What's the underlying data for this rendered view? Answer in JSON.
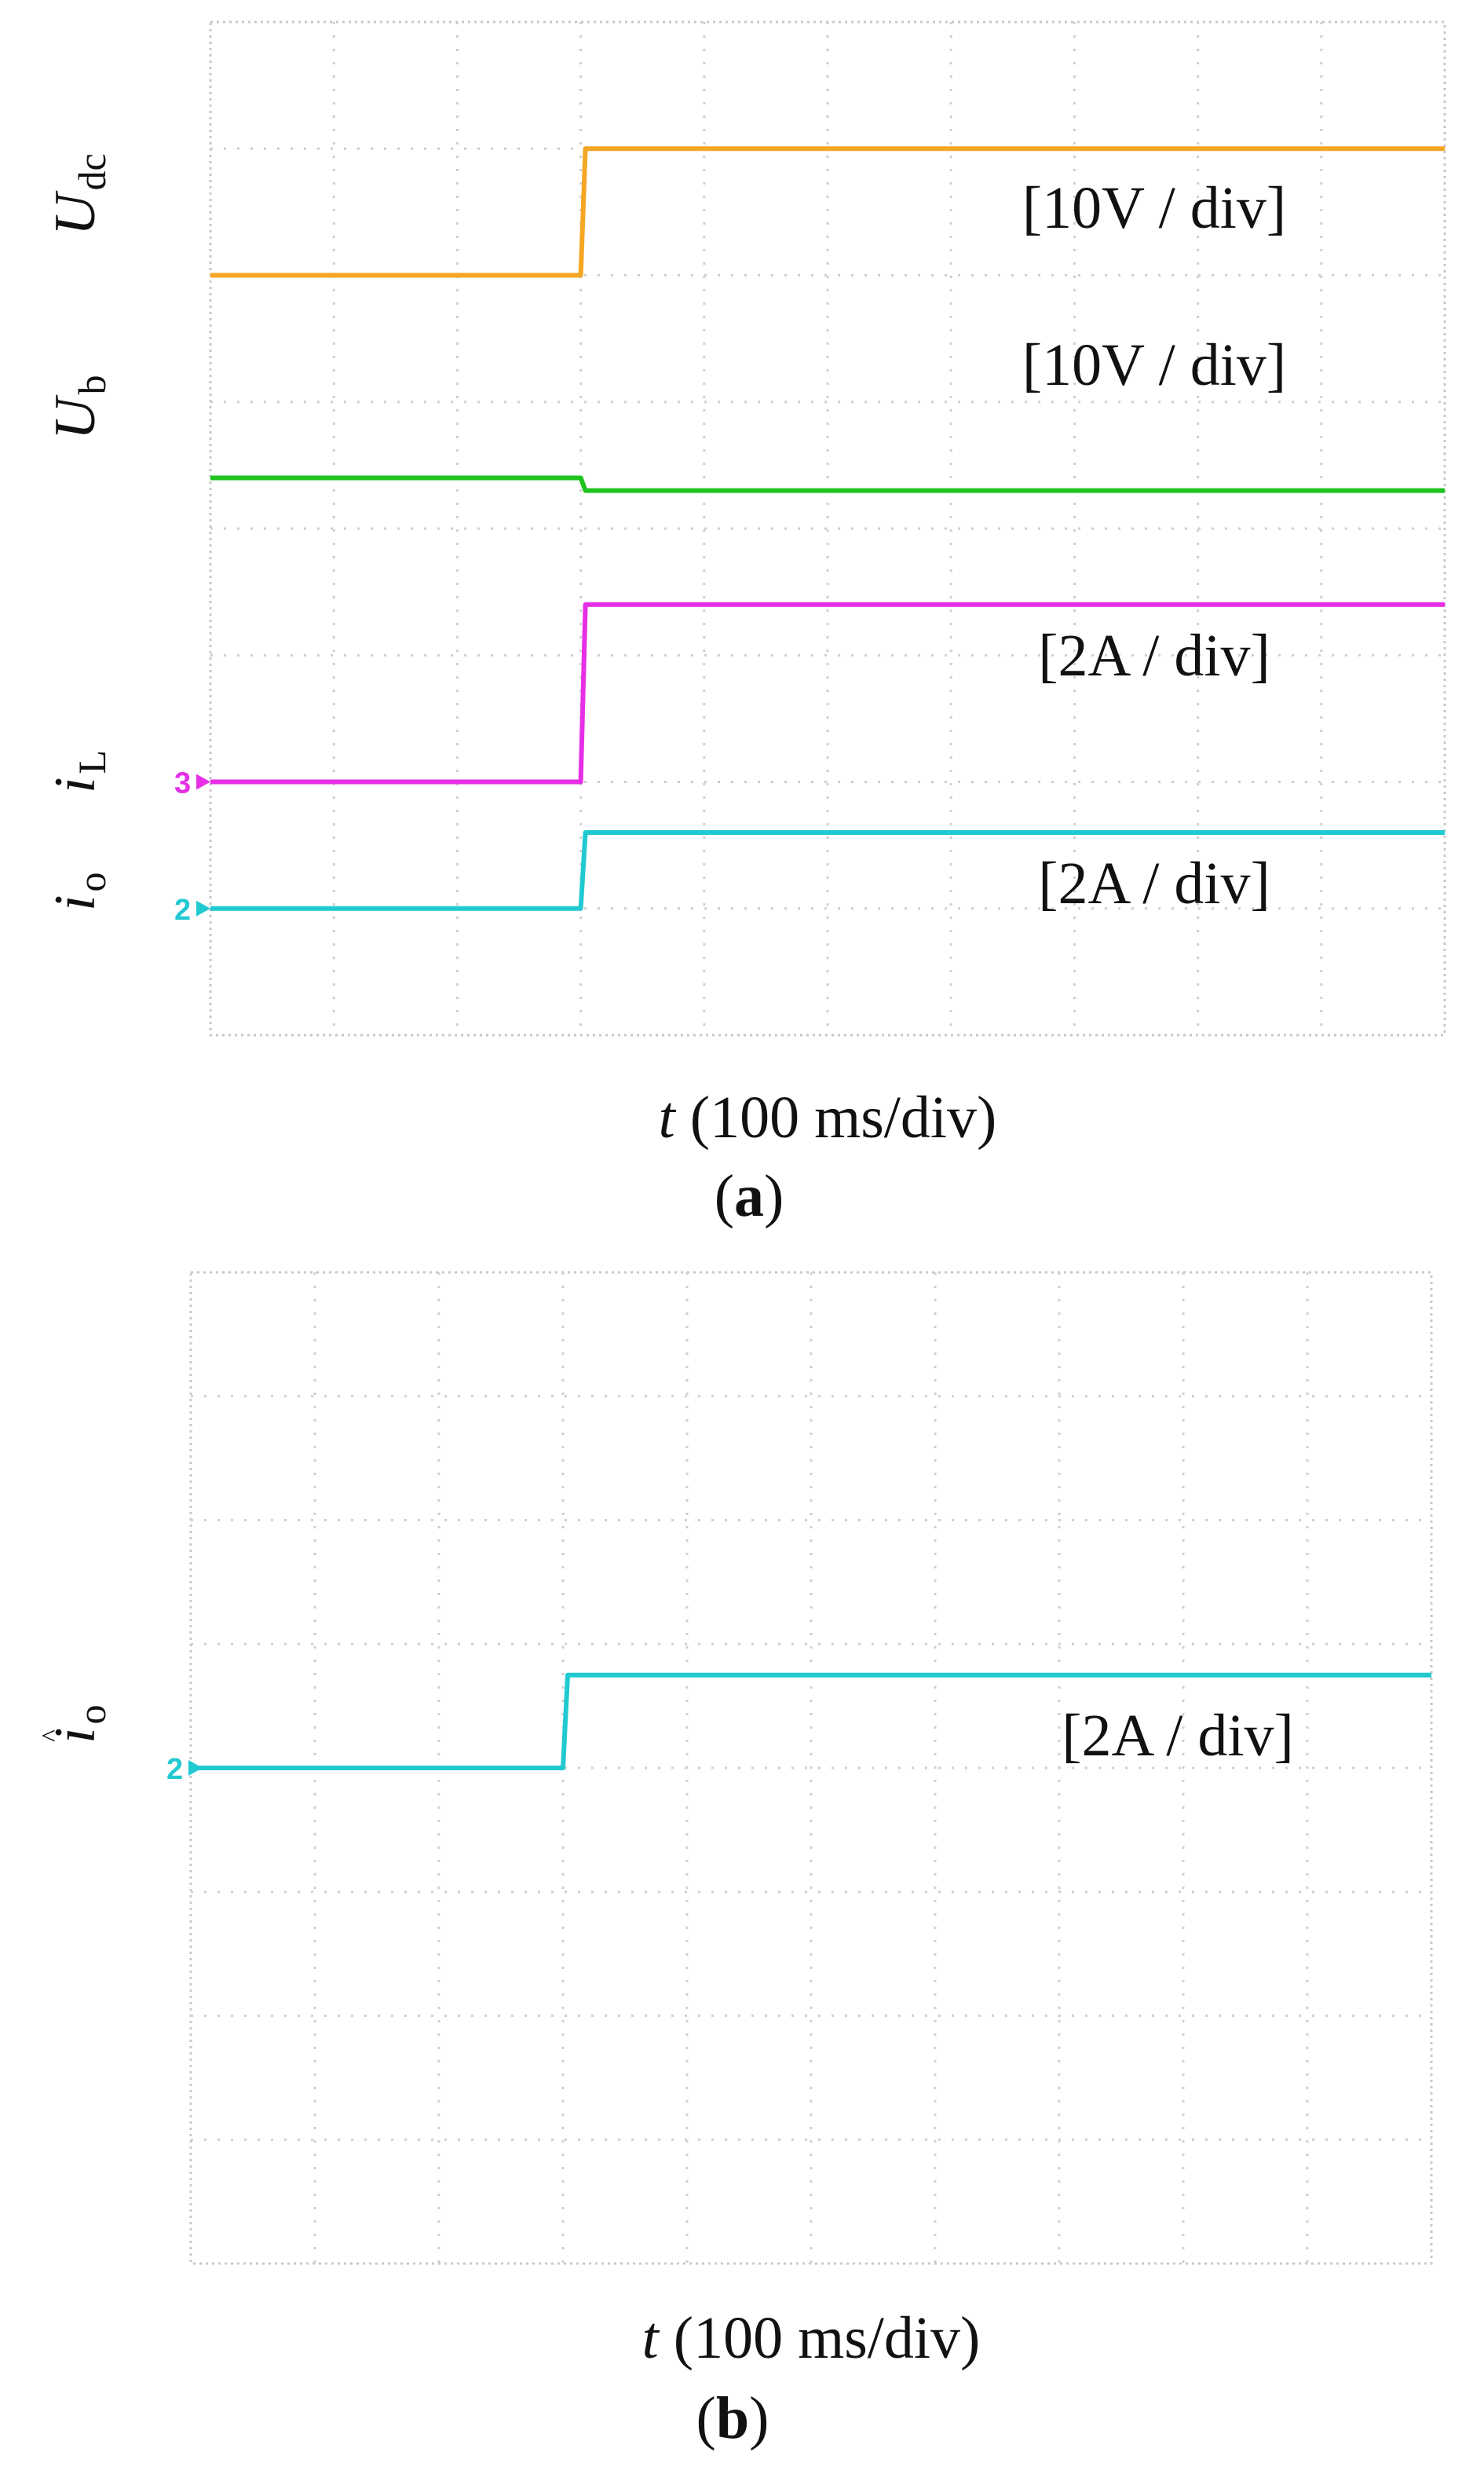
{
  "panels": [
    {
      "id": "a",
      "caption": "a",
      "xlabel": "t (100 ms/div)",
      "xlabel_var": "t",
      "xlabel_rest": " (100 ms/div)",
      "grid": {
        "hdiv": 10,
        "vdiv": 8
      },
      "traces": [
        {
          "key": "Udc",
          "sym": "U",
          "sub": "dc",
          "italic_sub": false,
          "scale": "[10V / div]",
          "color": "#f5a623",
          "marker": "",
          "level_before_div": 6.0,
          "level_after_div": 7.0,
          "step_at_div": 3.0
        },
        {
          "key": "Ub",
          "sym": "U",
          "sub": "b",
          "italic_sub": false,
          "scale": "[10V / div]",
          "color": "#1ec31e",
          "marker": "",
          "level_before_div": 4.4,
          "level_after_div": 4.3,
          "step_at_div": 3.0
        },
        {
          "key": "iL",
          "sym": "i",
          "sub": "L",
          "italic_sub": false,
          "scale": "[2A / div]",
          "color": "#e62ee6",
          "marker": "3",
          "level_before_div": 2.0,
          "level_after_div": 3.4,
          "step_at_div": 3.0
        },
        {
          "key": "io",
          "sym": "i",
          "sub": "o",
          "italic_sub": false,
          "scale": "[2A / div]",
          "color": "#21c9d1",
          "marker": "2",
          "level_before_div": 1.0,
          "level_after_div": 1.6,
          "step_at_div": 3.0
        }
      ]
    },
    {
      "id": "b",
      "caption": "b",
      "xlabel": "t (100 ms/div)",
      "xlabel_var": "t",
      "xlabel_rest": " (100 ms/div)",
      "grid": {
        "hdiv": 10,
        "vdiv": 8
      },
      "traces": [
        {
          "key": "io_hat",
          "sym": "i",
          "sub": "o",
          "hat": "^",
          "italic_sub": false,
          "scale": "[2A / div]",
          "color": "#21c9d1",
          "marker": "2",
          "level_before_div": 4.0,
          "level_after_div": 4.75,
          "step_at_div": 3.0
        }
      ]
    }
  ],
  "chart_data": [
    {
      "type": "line",
      "title": "",
      "xlabel": "t (100 ms/div)",
      "ylabel": "",
      "x_unit": "div (100 ms/div)",
      "xlim": [
        0,
        10
      ],
      "ylim": [
        0,
        8
      ],
      "grid": true,
      "series": [
        {
          "name": "Udc",
          "scale": "[10V / div]",
          "x": [
            0,
            3.0,
            3.05,
            10
          ],
          "y": [
            6.0,
            6.0,
            7.0,
            7.0
          ]
        },
        {
          "name": "Ub",
          "scale": "[10V / div]",
          "x": [
            0,
            3.0,
            3.05,
            10
          ],
          "y": [
            4.4,
            4.4,
            4.3,
            4.3
          ]
        },
        {
          "name": "iL",
          "scale": "[2A / div]",
          "x": [
            0,
            3.0,
            3.05,
            10
          ],
          "y": [
            2.0,
            2.0,
            3.4,
            3.4
          ]
        },
        {
          "name": "io",
          "scale": "[2A / div]",
          "x": [
            0,
            3.0,
            3.05,
            10
          ],
          "y": [
            1.0,
            1.0,
            1.6,
            1.6
          ]
        }
      ]
    },
    {
      "type": "line",
      "title": "",
      "xlabel": "t (100 ms/div)",
      "ylabel": "",
      "x_unit": "div (100 ms/div)",
      "xlim": [
        0,
        10
      ],
      "ylim": [
        0,
        8
      ],
      "grid": true,
      "series": [
        {
          "name": "io (estimated)",
          "scale": "[2A / div]",
          "x": [
            0,
            3.0,
            3.05,
            10
          ],
          "y": [
            4.0,
            4.0,
            4.75,
            4.75
          ]
        }
      ]
    }
  ]
}
